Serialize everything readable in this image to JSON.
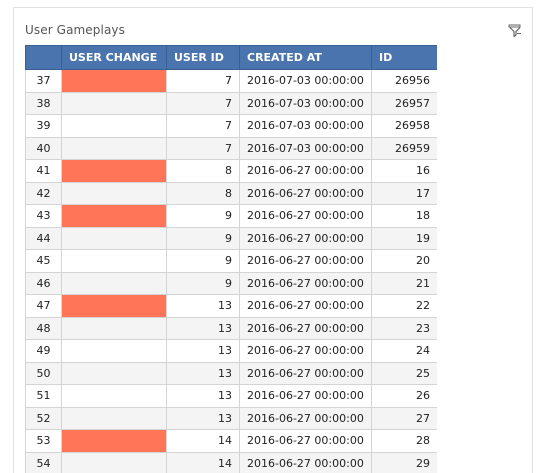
{
  "panel": {
    "title": "User Gameplays",
    "filter_icon": "filter-icon"
  },
  "columns": [
    "USER CHANGE",
    "USER ID",
    "CREATED AT",
    "ID"
  ],
  "colors": {
    "header_bg": "#4a74ae",
    "flag": "#fe7557"
  },
  "rows": [
    {
      "index": "37",
      "user_change": true,
      "user_id": "7",
      "created_at": "2016-07-03 00:00:00",
      "id": "26956"
    },
    {
      "index": "38",
      "user_change": false,
      "user_id": "7",
      "created_at": "2016-07-03 00:00:00",
      "id": "26957"
    },
    {
      "index": "39",
      "user_change": false,
      "user_id": "7",
      "created_at": "2016-07-03 00:00:00",
      "id": "26958"
    },
    {
      "index": "40",
      "user_change": false,
      "user_id": "7",
      "created_at": "2016-07-03 00:00:00",
      "id": "26959"
    },
    {
      "index": "41",
      "user_change": true,
      "user_id": "8",
      "created_at": "2016-06-27 00:00:00",
      "id": "16"
    },
    {
      "index": "42",
      "user_change": false,
      "user_id": "8",
      "created_at": "2016-06-27 00:00:00",
      "id": "17"
    },
    {
      "index": "43",
      "user_change": true,
      "user_id": "9",
      "created_at": "2016-06-27 00:00:00",
      "id": "18"
    },
    {
      "index": "44",
      "user_change": false,
      "user_id": "9",
      "created_at": "2016-06-27 00:00:00",
      "id": "19"
    },
    {
      "index": "45",
      "user_change": false,
      "user_id": "9",
      "created_at": "2016-06-27 00:00:00",
      "id": "20"
    },
    {
      "index": "46",
      "user_change": false,
      "user_id": "9",
      "created_at": "2016-06-27 00:00:00",
      "id": "21"
    },
    {
      "index": "47",
      "user_change": true,
      "user_id": "13",
      "created_at": "2016-06-27 00:00:00",
      "id": "22"
    },
    {
      "index": "48",
      "user_change": false,
      "user_id": "13",
      "created_at": "2016-06-27 00:00:00",
      "id": "23"
    },
    {
      "index": "49",
      "user_change": false,
      "user_id": "13",
      "created_at": "2016-06-27 00:00:00",
      "id": "24"
    },
    {
      "index": "50",
      "user_change": false,
      "user_id": "13",
      "created_at": "2016-06-27 00:00:00",
      "id": "25"
    },
    {
      "index": "51",
      "user_change": false,
      "user_id": "13",
      "created_at": "2016-06-27 00:00:00",
      "id": "26"
    },
    {
      "index": "52",
      "user_change": false,
      "user_id": "13",
      "created_at": "2016-06-27 00:00:00",
      "id": "27"
    },
    {
      "index": "53",
      "user_change": true,
      "user_id": "14",
      "created_at": "2016-06-27 00:00:00",
      "id": "28"
    },
    {
      "index": "54",
      "user_change": false,
      "user_id": "14",
      "created_at": "2016-06-27 00:00:00",
      "id": "29"
    }
  ]
}
